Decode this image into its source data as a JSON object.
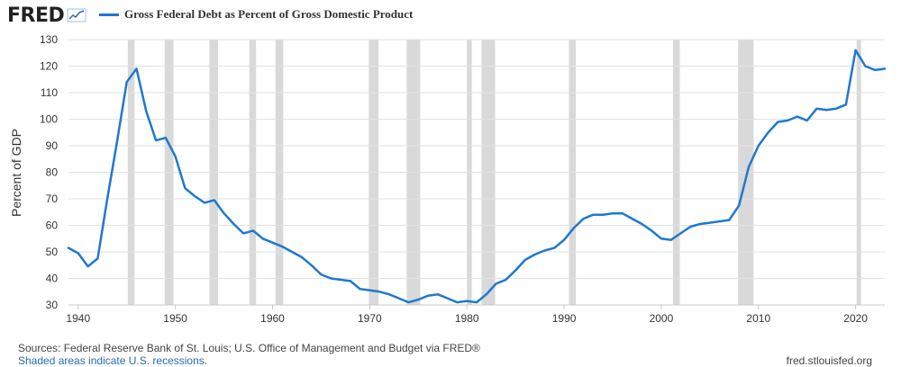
{
  "brand": {
    "name": "FRED"
  },
  "colors": {
    "series": "#1f78d1",
    "recession": "#d9d9d9",
    "grid": "#e2e2e2",
    "axis": "#c8c8c8"
  },
  "footer": {
    "source": "Sources: Federal Reserve Bank of St. Louis; U.S. Office of Management and Budget via FRED®",
    "note": "Shaded areas indicate U.S. recessions.",
    "site": "fred.stlouisfed.org"
  },
  "chart_data": {
    "type": "line",
    "title": "",
    "xlabel": "",
    "ylabel": "Percent of GDP",
    "xlim": [
      1939,
      2023
    ],
    "ylim": [
      30,
      130
    ],
    "xticks": [
      1940,
      1950,
      1960,
      1970,
      1980,
      1990,
      2000,
      2010,
      2020
    ],
    "yticks": [
      30,
      40,
      50,
      60,
      70,
      80,
      90,
      100,
      110,
      120,
      130
    ],
    "grid": true,
    "legend": "top-left",
    "series": [
      {
        "name": "Gross Federal Debt as Percent of Gross Domestic Product",
        "x": [
          1939,
          1940,
          1941,
          1942,
          1943,
          1944,
          1945,
          1946,
          1947,
          1948,
          1949,
          1950,
          1951,
          1952,
          1953,
          1954,
          1955,
          1956,
          1957,
          1958,
          1959,
          1960,
          1961,
          1962,
          1963,
          1964,
          1965,
          1966,
          1967,
          1968,
          1969,
          1970,
          1971,
          1972,
          1973,
          1974,
          1975,
          1976,
          1977,
          1978,
          1979,
          1980,
          1981,
          1982,
          1983,
          1984,
          1985,
          1986,
          1987,
          1988,
          1989,
          1990,
          1991,
          1992,
          1993,
          1994,
          1995,
          1996,
          1997,
          1998,
          1999,
          2000,
          2001,
          2002,
          2003,
          2004,
          2005,
          2006,
          2007,
          2008,
          2009,
          2010,
          2011,
          2012,
          2013,
          2014,
          2015,
          2016,
          2017,
          2018,
          2019,
          2020,
          2021,
          2022,
          2023
        ],
        "values": [
          51.5,
          49.5,
          44.5,
          47.5,
          70.0,
          91.5,
          114.0,
          119.0,
          103.0,
          92.0,
          93.0,
          86.0,
          74.0,
          71.0,
          68.5,
          69.5,
          64.5,
          60.5,
          57.0,
          58.0,
          55.0,
          53.5,
          52.0,
          50.0,
          48.0,
          45.0,
          41.5,
          40.0,
          39.5,
          39.0,
          36.0,
          35.5,
          35.0,
          34.0,
          32.5,
          31.0,
          32.0,
          33.5,
          34.0,
          32.5,
          31.0,
          31.5,
          31.0,
          34.0,
          38.0,
          39.5,
          43.0,
          47.0,
          49.0,
          50.5,
          51.5,
          54.5,
          59.0,
          62.5,
          64.0,
          64.0,
          64.5,
          64.5,
          62.5,
          60.5,
          58.0,
          55.0,
          54.5,
          57.0,
          59.5,
          60.5,
          61.0,
          61.5,
          62.0,
          67.5,
          82.0,
          90.0,
          95.0,
          99.0,
          99.5,
          101.0,
          99.5,
          104.0,
          103.5,
          104.0,
          105.5,
          126.0,
          120.0,
          118.5,
          119.0
        ]
      }
    ],
    "recessions": [
      [
        1945.1,
        1945.8
      ],
      [
        1948.9,
        1949.8
      ],
      [
        1953.5,
        1954.4
      ],
      [
        1957.6,
        1958.3
      ],
      [
        1960.3,
        1961.1
      ],
      [
        1969.9,
        1970.9
      ],
      [
        1973.8,
        1975.2
      ],
      [
        1980.0,
        1980.5
      ],
      [
        1981.5,
        1982.9
      ],
      [
        1990.5,
        1991.2
      ],
      [
        2001.2,
        2001.9
      ],
      [
        2007.9,
        2009.5
      ],
      [
        2020.1,
        2020.4
      ]
    ]
  }
}
